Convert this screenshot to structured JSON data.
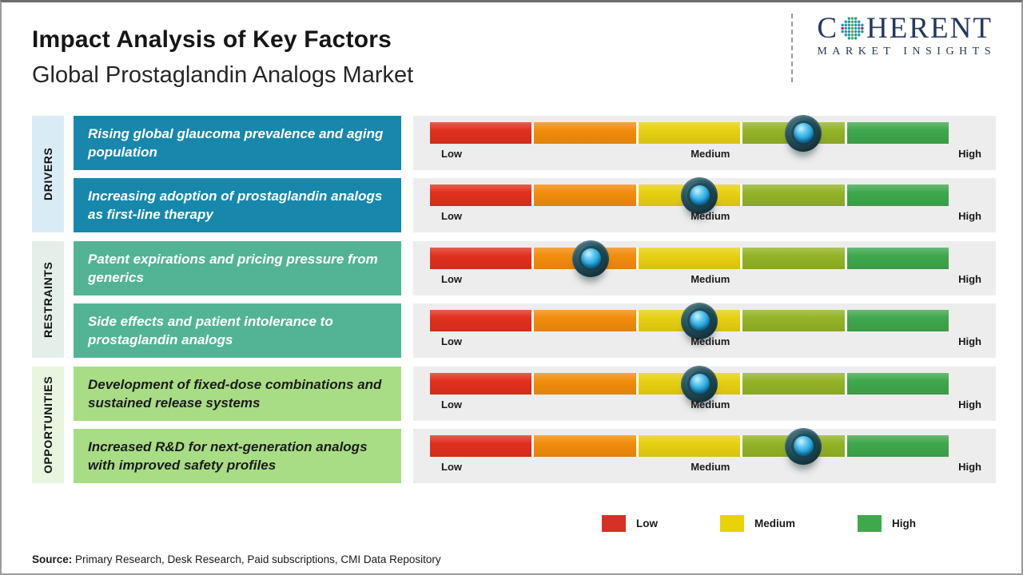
{
  "header": {
    "title": "Impact Analysis of Key Factors",
    "subtitle": "Global Prostaglandin Analogs Market",
    "logo": {
      "brand_first": "C",
      "brand_rest": "HERENT",
      "tagline": "MARKET INSIGHTS",
      "brand_color": "#24395e",
      "globe_dot_colors": [
        "#c2185b",
        "#2496ad",
        "#56a845"
      ]
    }
  },
  "groups": [
    {
      "label": "DRIVERS",
      "label_bg": "#d9ecf6",
      "box_bg": "#1787ac",
      "box_text_color": "#ffffff"
    },
    {
      "label": "RESTRAINTS",
      "label_bg": "#e3efe8",
      "box_bg": "#52b494",
      "box_text_color": "#ffffff"
    },
    {
      "label": "OPPORTUNITIES",
      "label_bg": "#e9f5de",
      "box_bg": "#a9dd85",
      "box_text_color": "#1b1b1b"
    }
  ],
  "rows": [
    {
      "group": "DRIVERS",
      "factor": "Rising global glaucoma prevalence and aging population",
      "impact_reading": "Medium-High",
      "marker_pct": 72
    },
    {
      "group": "DRIVERS",
      "factor": "Increasing adoption of prostaglandin analogs as first-line therapy",
      "impact_reading": "Medium",
      "marker_pct": 52
    },
    {
      "group": "RESTRAINTS",
      "factor": "Patent expirations and pricing pressure from generics",
      "impact_reading": "Low-Medium",
      "marker_pct": 31
    },
    {
      "group": "RESTRAINTS",
      "factor": "Side effects and patient intolerance to prostaglandin analogs",
      "impact_reading": "Medium",
      "marker_pct": 52
    },
    {
      "group": "OPPORTUNITIES",
      "factor": "Development of fixed-dose combinations and sustained release systems",
      "impact_reading": "Medium",
      "marker_pct": 52
    },
    {
      "group": "OPPORTUNITIES",
      "factor": "Increased R&D for next-generation analogs with improved safety profiles",
      "impact_reading": "Medium-High",
      "marker_pct": 72
    }
  ],
  "scale": {
    "labels": {
      "low": "Low",
      "medium": "Medium",
      "high": "High"
    },
    "segment_colors": [
      "#e1301e",
      "#f18c0c",
      "#e7d011",
      "#93b327",
      "#3fa74c"
    ],
    "panel_bg": "#ededed"
  },
  "legend": {
    "items": [
      {
        "label": "Low",
        "color": "#d93025"
      },
      {
        "label": "Medium",
        "color": "#e8d20a"
      },
      {
        "label": "High",
        "color": "#3fa74c"
      }
    ]
  },
  "source": {
    "prefix": "Source:",
    "text": " Primary Research, Desk Research, Paid subscriptions, CMI Data Repository"
  },
  "chart_data": {
    "type": "table",
    "title": "Impact Analysis of Key Factors",
    "subtitle": "Global Prostaglandin Analogs Market",
    "scale_labels": [
      "Low",
      "Medium",
      "High"
    ],
    "scale_range_pct": [
      0,
      100
    ],
    "categories": [
      "Drivers",
      "Drivers",
      "Restraints",
      "Restraints",
      "Opportunities",
      "Opportunities"
    ],
    "factors": [
      "Rising global glaucoma prevalence and aging population",
      "Increasing adoption of prostaglandin analogs as first-line therapy",
      "Patent expirations and pricing pressure from generics",
      "Side effects and patient intolerance to prostaglandin analogs",
      "Development of fixed-dose combinations and sustained release systems",
      "Increased R&D for next-generation analogs with improved safety profiles"
    ],
    "impact_position_pct": [
      72,
      52,
      31,
      52,
      52,
      72
    ],
    "impact_reading": [
      "Medium-High",
      "Medium",
      "Low-Medium",
      "Medium",
      "Medium",
      "Medium-High"
    ],
    "legend_position": "bottom-right"
  }
}
